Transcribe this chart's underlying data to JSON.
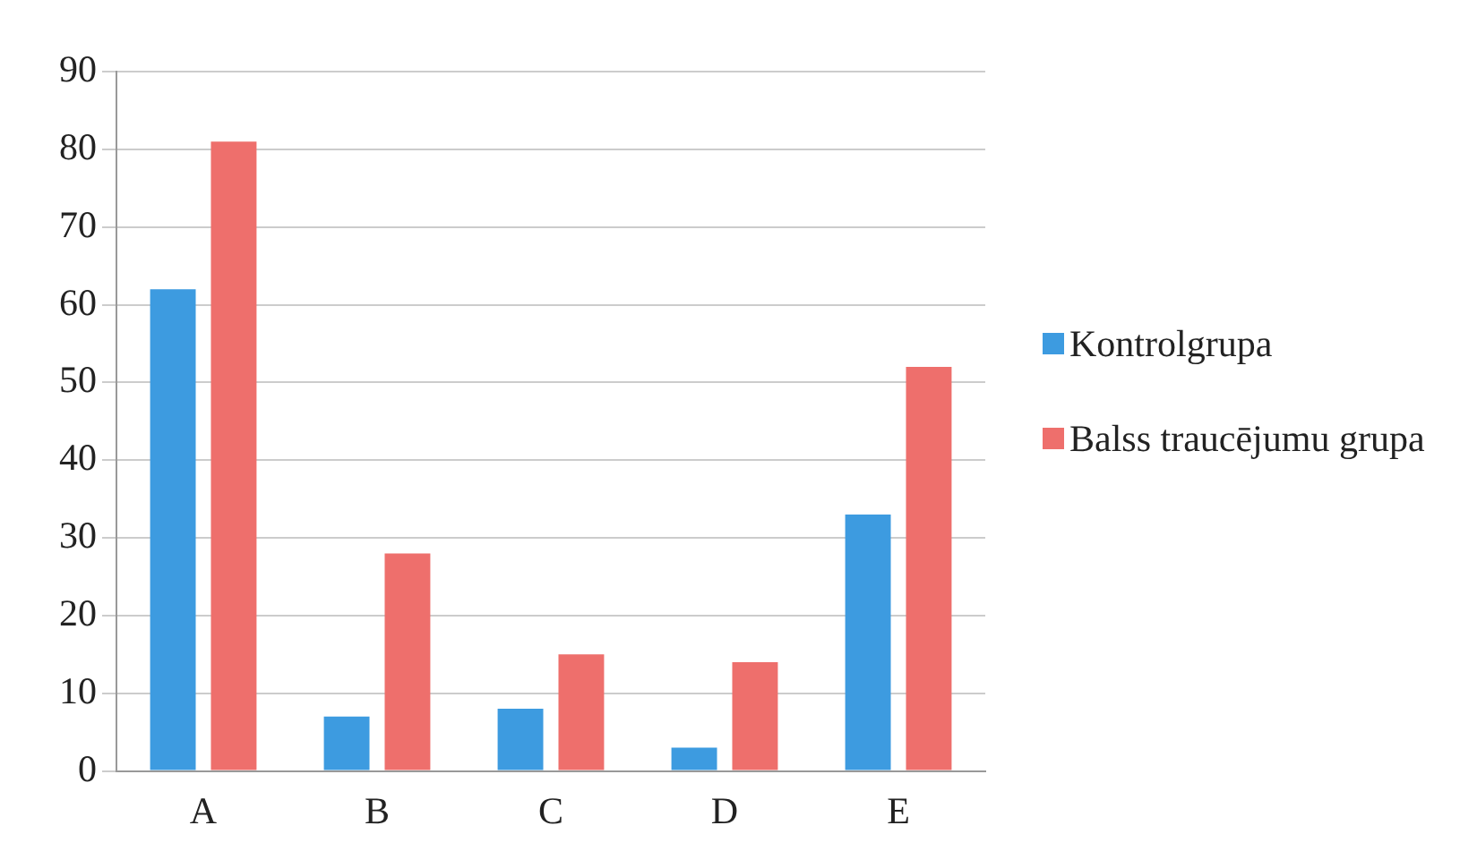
{
  "chart_data": {
    "type": "bar",
    "categories": [
      "A",
      "B",
      "C",
      "D",
      "E"
    ],
    "series": [
      {
        "name": "Kontrolgrupa",
        "color": "#3d9be0",
        "values": [
          62,
          7,
          8,
          3,
          33
        ]
      },
      {
        "name": "Balss traucējumu grupa",
        "color": "#ee6f6c",
        "values": [
          81,
          28,
          15,
          14,
          52
        ]
      }
    ],
    "ylim": [
      0,
      90
    ],
    "yticks": [
      0,
      10,
      20,
      30,
      40,
      50,
      60,
      70,
      80,
      90
    ],
    "grid": "y",
    "legend": "right"
  }
}
